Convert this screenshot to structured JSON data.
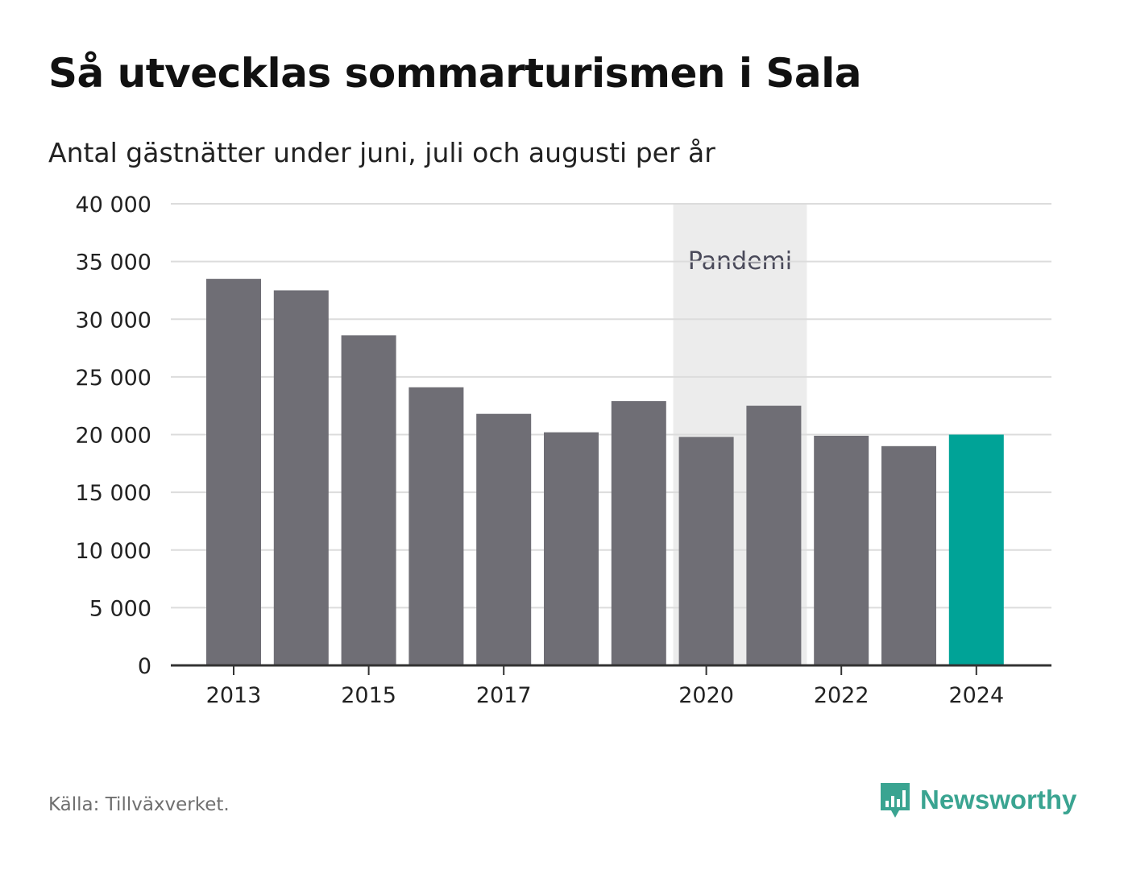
{
  "title": "Så utvecklas sommarturismen i Sala",
  "subtitle": "Antal gästnätter under juni, juli och augusti per år",
  "source": "Källa: Tillväxverket.",
  "brand": {
    "name": "Newsworthy",
    "icon": "newsworthy-logo-icon",
    "color": "#3aa491"
  },
  "colors": {
    "bar": "#6f6e75",
    "highlight": "#00a397",
    "shade": "#ececec",
    "grid": "#dcdcdc",
    "axis": "#333333"
  },
  "chart_data": {
    "type": "bar",
    "title": "Så utvecklas sommarturismen i Sala",
    "subtitle": "Antal gästnätter under juni, juli och augusti per år",
    "categories": [
      "2013",
      "2014",
      "2015",
      "2016",
      "2017",
      "2018",
      "2019",
      "2020",
      "2021",
      "2022",
      "2023",
      "2024"
    ],
    "values": [
      33500,
      32500,
      28600,
      24100,
      21800,
      20200,
      22900,
      19800,
      22500,
      19900,
      19000,
      20000
    ],
    "highlight_category": "2024",
    "x_tick_labels": [
      "2013",
      "2015",
      "2017",
      "2020",
      "2022",
      "2024"
    ],
    "y_ticks": [
      0,
      5000,
      10000,
      15000,
      20000,
      25000,
      30000,
      35000,
      40000
    ],
    "y_tick_labels": [
      "0",
      "5 000",
      "10 000",
      "15 000",
      "20 000",
      "25 000",
      "30 000",
      "35 000",
      "40 000"
    ],
    "ylim": [
      0,
      40000
    ],
    "grid": true,
    "annotation": {
      "label": "Pandemi",
      "from": "2020",
      "to": "2021"
    }
  }
}
